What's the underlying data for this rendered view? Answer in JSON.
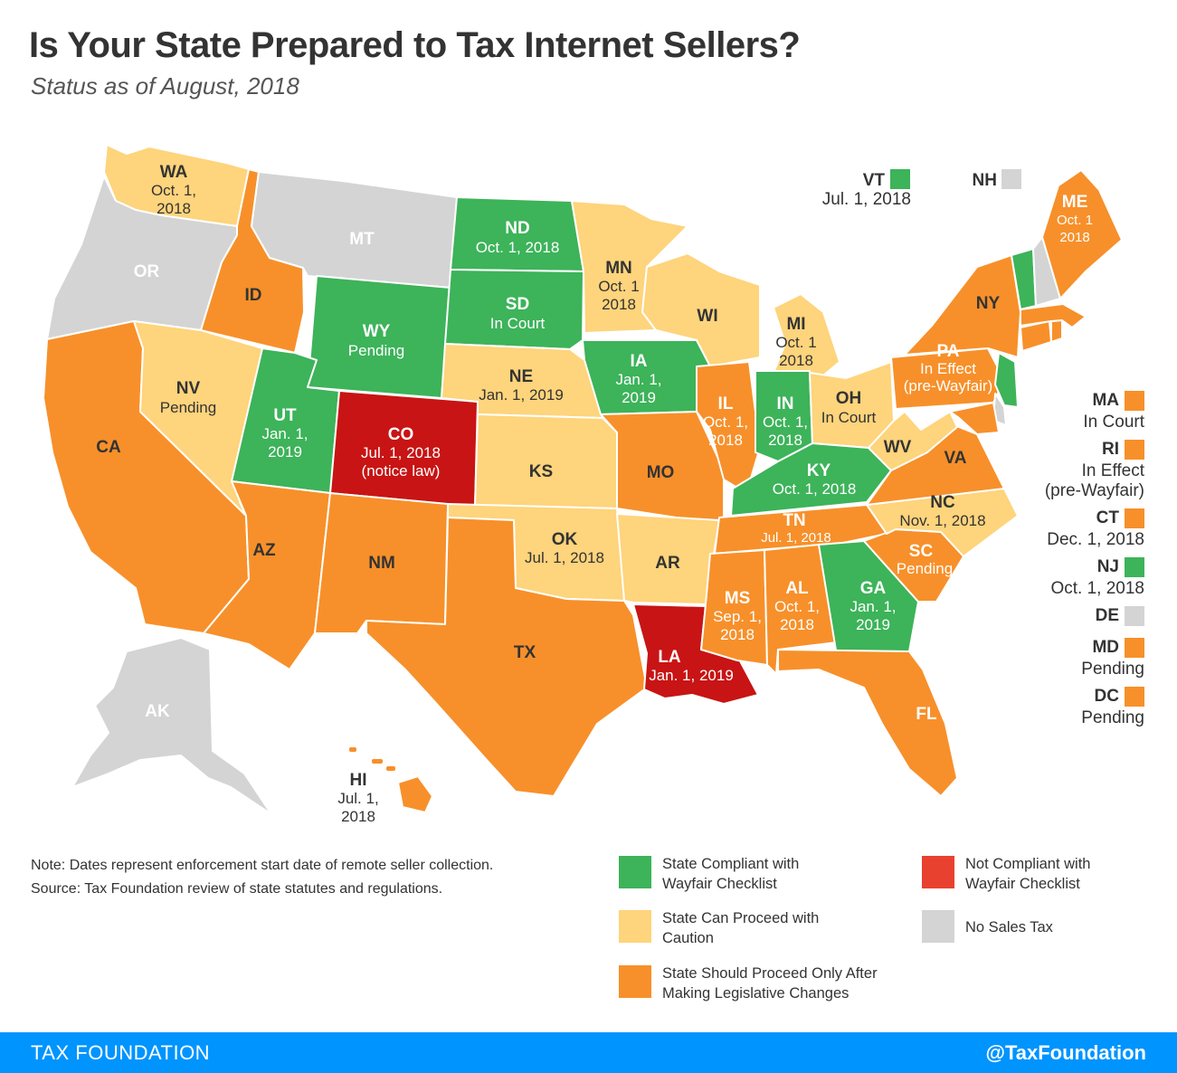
{
  "title": "Is Your State Prepared to Tax Internet Sellers?",
  "subtitle": "Status as of August, 2018",
  "colors": {
    "compliant": "#3db35a",
    "caution": "#fed47c",
    "legislative": "#f7902a",
    "not_compliant": "#c81414",
    "not_compliant_legend": "#e8412f",
    "no_tax": "#d4d4d4"
  },
  "states": {
    "WA": {
      "abbr": "WA",
      "date1": "Oct. 1,",
      "date2": "2018"
    },
    "OR": {
      "abbr": "OR"
    },
    "CA": {
      "abbr": "CA"
    },
    "ID": {
      "abbr": "ID"
    },
    "NV": {
      "abbr": "NV",
      "date1": "Pending"
    },
    "MT": {
      "abbr": "MT"
    },
    "WY": {
      "abbr": "WY",
      "date1": "Pending"
    },
    "UT": {
      "abbr": "UT",
      "date1": "Jan. 1,",
      "date2": "2019"
    },
    "CO": {
      "abbr": "CO",
      "date1": "Jul. 1, 2018",
      "date2": "(notice law)"
    },
    "AZ": {
      "abbr": "AZ"
    },
    "NM": {
      "abbr": "NM"
    },
    "ND": {
      "abbr": "ND",
      "date1": "Oct. 1, 2018"
    },
    "SD": {
      "abbr": "SD",
      "date1": "In Court"
    },
    "NE": {
      "abbr": "NE",
      "date1": "Jan. 1, 2019"
    },
    "KS": {
      "abbr": "KS"
    },
    "OK": {
      "abbr": "OK",
      "date1": "Jul. 1, 2018"
    },
    "TX": {
      "abbr": "TX"
    },
    "MN": {
      "abbr": "MN",
      "date1": "Oct. 1",
      "date2": "2018"
    },
    "IA": {
      "abbr": "IA",
      "date1": "Jan. 1,",
      "date2": "2019"
    },
    "MO": {
      "abbr": "MO"
    },
    "AR": {
      "abbr": "AR"
    },
    "LA": {
      "abbr": "LA",
      "date1": "Jan. 1, 2019"
    },
    "WI": {
      "abbr": "WI"
    },
    "IL": {
      "abbr": "IL",
      "date1": "Oct. 1,",
      "date2": "2018"
    },
    "MI": {
      "abbr": "MI",
      "date1": "Oct. 1",
      "date2": "2018"
    },
    "IN": {
      "abbr": "IN",
      "date1": "Oct. 1,",
      "date2": "2018"
    },
    "OH": {
      "abbr": "OH",
      "date1": "In Court"
    },
    "KY": {
      "abbr": "KY",
      "date1": "Oct. 1, 2018"
    },
    "TN": {
      "abbr": "TN",
      "date1": "Jul. 1, 2018"
    },
    "MS": {
      "abbr": "MS",
      "date1": "Sep. 1,",
      "date2": "2018"
    },
    "AL": {
      "abbr": "AL",
      "date1": "Oct. 1,",
      "date2": "2018"
    },
    "GA": {
      "abbr": "GA",
      "date1": "Jan. 1,",
      "date2": "2019"
    },
    "FL": {
      "abbr": "FL"
    },
    "SC": {
      "abbr": "SC",
      "date1": "Pending"
    },
    "NC": {
      "abbr": "NC",
      "date1": "Nov. 1, 2018"
    },
    "VA": {
      "abbr": "VA"
    },
    "WV": {
      "abbr": "WV"
    },
    "PA": {
      "abbr": "PA",
      "date1": "In Effect",
      "date2": "(pre-Wayfair)"
    },
    "NY": {
      "abbr": "NY"
    },
    "ME": {
      "abbr": "ME",
      "date1": "Oct. 1",
      "date2": "2018"
    },
    "AK": {
      "abbr": "AK"
    },
    "HI": {
      "abbr": "HI",
      "date1": "Jul. 1,",
      "date2": "2018"
    }
  },
  "callouts": {
    "VT": {
      "abbr": "VT",
      "date": "Jul. 1, 2018"
    },
    "NH": {
      "abbr": "NH"
    }
  },
  "side": [
    {
      "abbr": "MA",
      "date": "In Court",
      "status": "legislative"
    },
    {
      "abbr": "RI",
      "date": "In Effect",
      "date2": "(pre-Wayfair)",
      "status": "legislative"
    },
    {
      "abbr": "CT",
      "date": "Dec. 1, 2018",
      "status": "legislative"
    },
    {
      "abbr": "NJ",
      "date": "Oct. 1, 2018",
      "status": "compliant"
    },
    {
      "abbr": "DE",
      "date": "",
      "status": "no_tax"
    },
    {
      "abbr": "MD",
      "date": "Pending",
      "status": "legislative"
    },
    {
      "abbr": "DC",
      "date": "Pending",
      "status": "legislative"
    }
  ],
  "note": "Note: Dates represent enforcement start date of remote seller collection.",
  "source": "Source: Tax Foundation review of state statutes and regulations.",
  "legend": {
    "compliant": "State Compliant with Wayfair Checklist",
    "not_compliant": "Not Compliant with Wayfair Checklist",
    "caution": "State Can Proceed with Caution",
    "no_tax": "No Sales Tax",
    "legislative": "State Should Proceed Only After Making Legislative Changes"
  },
  "footer": {
    "left": "TAX FOUNDATION",
    "right": "@TaxFoundation"
  }
}
